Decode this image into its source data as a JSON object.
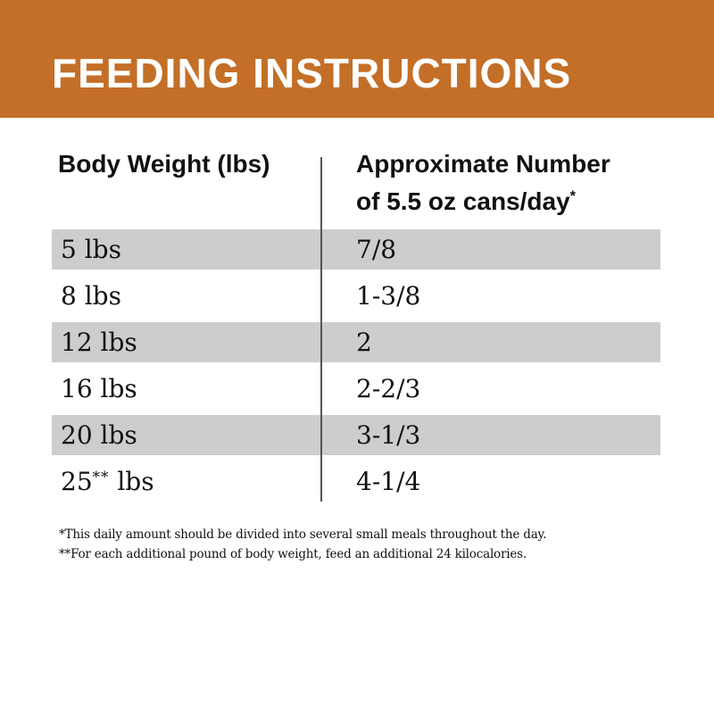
{
  "banner": {
    "title": "FEEDING INSTRUCTIONS"
  },
  "table": {
    "columns": {
      "left": {
        "label": "Body Weight (lbs)"
      },
      "right": {
        "line1": "Approximate Number",
        "line2": "of 5.5 oz cans/day",
        "sup": "*"
      }
    },
    "rows": [
      {
        "weight": "5 lbs",
        "weight_sup": "",
        "weight_after": "",
        "cans": "7/8",
        "shaded": true
      },
      {
        "weight": "8 lbs",
        "weight_sup": "",
        "weight_after": "",
        "cans": "1-3/8",
        "shaded": false
      },
      {
        "weight": "12 lbs",
        "weight_sup": "",
        "weight_after": "",
        "cans": "2",
        "shaded": true
      },
      {
        "weight": "16 lbs",
        "weight_sup": "",
        "weight_after": "",
        "cans": "2-2/3",
        "shaded": false
      },
      {
        "weight": "20 lbs",
        "weight_sup": "",
        "weight_after": "",
        "cans": "3-1/3",
        "shaded": true
      },
      {
        "weight": "25",
        "weight_sup": "**",
        "weight_after": " lbs",
        "cans": "4-1/4",
        "shaded": false
      }
    ]
  },
  "footnotes": [
    "*This daily amount should be divided into several small meals throughout the day.",
    "**For each additional pound of body weight, feed an additional 24 kilocalories."
  ],
  "colors": {
    "banner_bg": "#C46F27",
    "banner_text": "#FFFFFF",
    "row_shade": "#CDCDCD",
    "divider": "#555555",
    "text": "#111111"
  }
}
